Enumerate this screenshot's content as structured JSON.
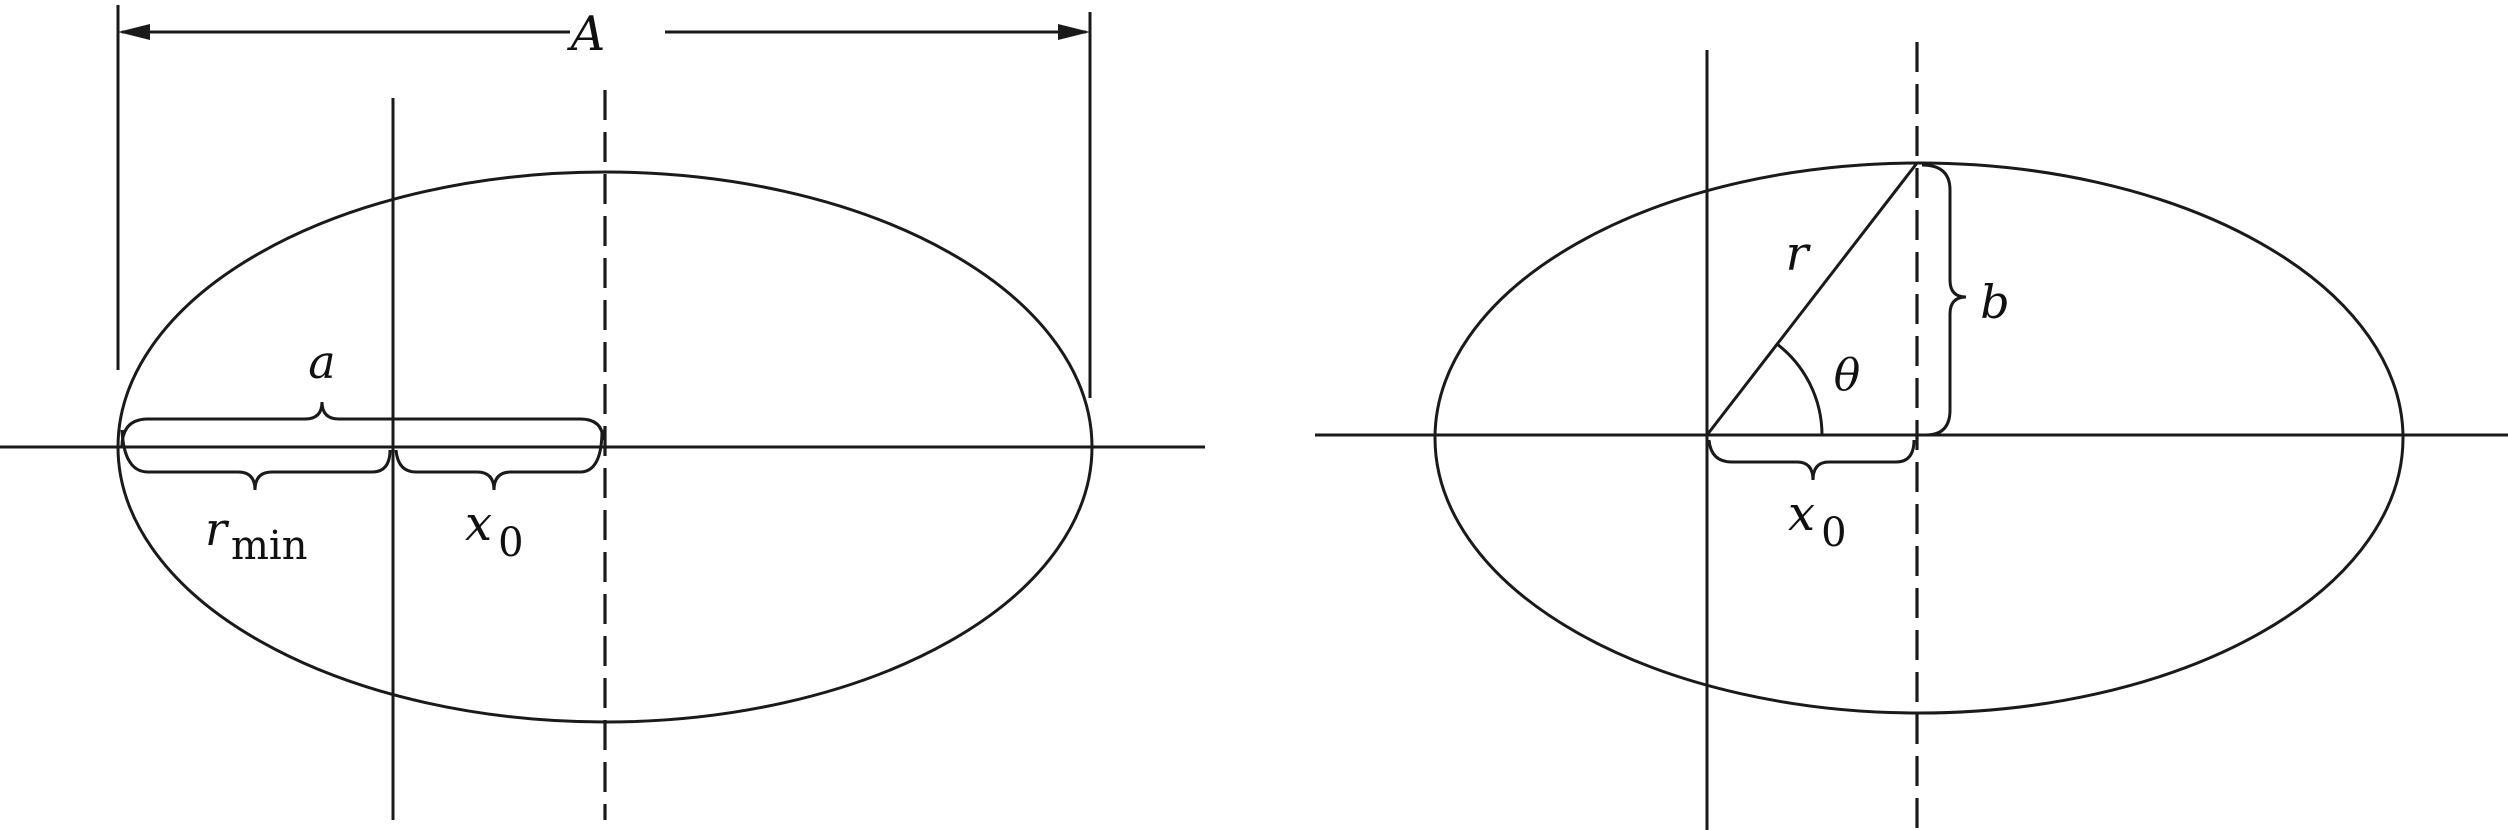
{
  "left_panel": {
    "label_A": "A",
    "label_a": "a",
    "label_r": "r",
    "label_r_sub": "min",
    "label_x": "x",
    "label_x_sub": "0"
  },
  "right_panel": {
    "label_r": "r",
    "label_theta": "θ",
    "label_b": "b",
    "label_x": "x",
    "label_x_sub": "0"
  },
  "colors": {
    "stroke": "#1a1a1a",
    "background": "#ffffff"
  }
}
